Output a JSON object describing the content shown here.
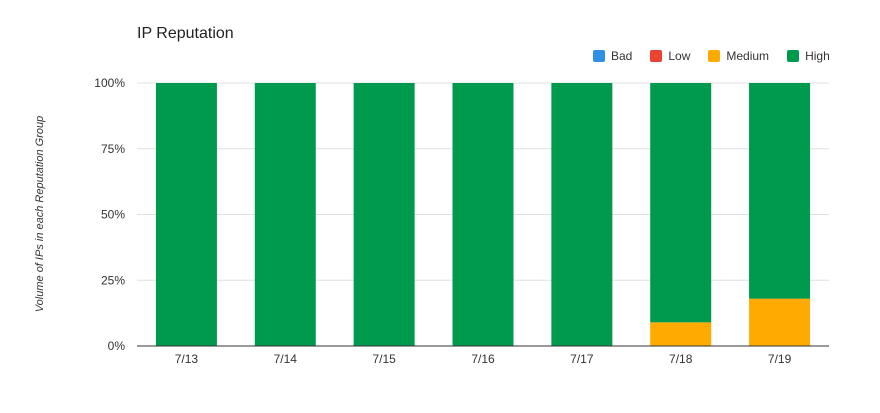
{
  "chart_data": {
    "type": "bar",
    "stacked": true,
    "title": "IP Reputation",
    "xlabel": "",
    "ylabel": "Volume of IPs in each Reputation Group",
    "categories": [
      "7/13",
      "7/14",
      "7/15",
      "7/16",
      "7/17",
      "7/18",
      "7/19"
    ],
    "y_ticks": [
      "0%",
      "25%",
      "50%",
      "75%",
      "100%"
    ],
    "ylim": [
      0,
      100
    ],
    "grid": true,
    "legend_position": "top-right",
    "series": [
      {
        "name": "Bad",
        "color": "#2f8fe6",
        "values": [
          0,
          0,
          0,
          0,
          0,
          0,
          0
        ]
      },
      {
        "name": "Low",
        "color": "#ea4335",
        "values": [
          0,
          0,
          0,
          0,
          0,
          0,
          0
        ]
      },
      {
        "name": "Medium",
        "color": "#ffaa00",
        "values": [
          0,
          0,
          0,
          0,
          0,
          9,
          18
        ]
      },
      {
        "name": "High",
        "color": "#009a4e",
        "values": [
          100,
          100,
          100,
          100,
          100,
          91,
          82
        ]
      }
    ]
  }
}
